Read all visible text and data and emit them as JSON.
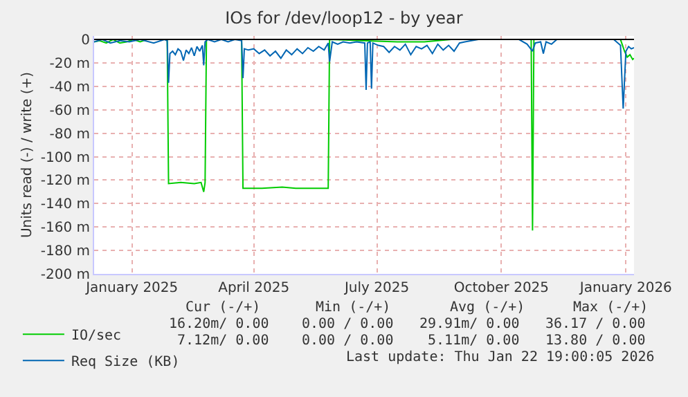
{
  "chart_data": {
    "type": "line",
    "title": "IOs for /dev/loop12 - by year",
    "ylabel": "Units read (-) / write (+)",
    "xlim": [
      "2024-12-19",
      "2026-01-22"
    ],
    "ylim": [
      -200,
      3
    ],
    "xticks": [
      {
        "value": "2025-01-16",
        "label": "January 2025"
      },
      {
        "value": "2025-04-16",
        "label": "April 2025"
      },
      {
        "value": "2025-07-16",
        "label": "July 2025"
      },
      {
        "value": "2025-10-16",
        "label": "October 2025"
      },
      {
        "value": "2026-01-16",
        "label": "January 2026"
      }
    ],
    "yticks": [
      0,
      {
        "value": -20,
        "label": "-20 m"
      },
      {
        "value": -40,
        "label": "-40 m"
      },
      {
        "value": -60,
        "label": "-60 m"
      },
      {
        "value": -80,
        "label": "-80 m"
      },
      {
        "value": -100,
        "label": "-100 m"
      },
      {
        "value": -120,
        "label": "-120 m"
      },
      {
        "value": -140,
        "label": "-140 m"
      },
      {
        "value": -160,
        "label": "-160 m"
      },
      {
        "value": -180,
        "label": "-180 m"
      },
      {
        "value": -200,
        "label": "-200 m"
      }
    ],
    "grid": true,
    "legend": "bottom left",
    "marker": "none",
    "line_style": "solid",
    "ref_lines": [
      {
        "axis": "y",
        "value": 0,
        "color": "#000000"
      }
    ],
    "series": [
      {
        "name": "IO/sec",
        "color": "#00cc00",
        "x": [
          "2024-12-19",
          "2024-12-23",
          "2024-12-28",
          "2025-01-02",
          "2025-01-07",
          "2025-01-12",
          "2025-01-17",
          "2025-01-22",
          "2025-01-27",
          "2025-02-01",
          "2025-02-06",
          "2025-02-11",
          "2025-02-12",
          "2025-02-21",
          "2025-03-03",
          "2025-03-08",
          "2025-03-10",
          "2025-03-11",
          "2025-03-12",
          "2025-03-23",
          "2025-04-07",
          "2025-04-08",
          "2025-04-22",
          "2025-05-07",
          "2025-05-17",
          "2025-05-27",
          "2025-06-10",
          "2025-06-11",
          "2025-07-31",
          "2025-08-20",
          "2025-09-09",
          "2025-11-07",
          "2025-11-08",
          "2025-11-09",
          "2026-01-12",
          "2026-01-15",
          "2026-01-17",
          "2026-01-19",
          "2026-01-21",
          "2026-01-22"
        ],
        "values": [
          -2,
          -1,
          -3,
          0,
          -3,
          -2,
          0,
          -2,
          0,
          0,
          0,
          0,
          -123,
          -122,
          -123,
          -122,
          -130,
          -122,
          0,
          0,
          0,
          -127,
          -127,
          -126,
          -127,
          -127,
          -127,
          0,
          -2,
          -2,
          0,
          0,
          -163,
          0,
          0,
          -10,
          -15,
          -13,
          -17,
          -16
        ]
      },
      {
        "name": "Req Size (KB)",
        "color": "#0066b3",
        "x": [
          "2024-12-19",
          "2024-12-25",
          "2024-12-31",
          "2025-01-07",
          "2025-01-14",
          "2025-01-22",
          "2025-02-01",
          "2025-02-09",
          "2025-02-11",
          "2025-02-12",
          "2025-02-13",
          "2025-02-15",
          "2025-02-17",
          "2025-02-19",
          "2025-02-21",
          "2025-02-23",
          "2025-02-25",
          "2025-02-27",
          "2025-03-01",
          "2025-03-03",
          "2025-03-05",
          "2025-03-07",
          "2025-03-09",
          "2025-03-10",
          "2025-03-11",
          "2025-03-13",
          "2025-03-18",
          "2025-03-23",
          "2025-03-28",
          "2025-04-02",
          "2025-04-07",
          "2025-04-08",
          "2025-04-09",
          "2025-04-12",
          "2025-04-16",
          "2025-04-20",
          "2025-04-24",
          "2025-04-28",
          "2025-05-02",
          "2025-05-06",
          "2025-05-10",
          "2025-05-14",
          "2025-05-18",
          "2025-05-22",
          "2025-05-26",
          "2025-05-30",
          "2025-06-03",
          "2025-06-07",
          "2025-06-10",
          "2025-06-11",
          "2025-06-13",
          "2025-06-17",
          "2025-06-21",
          "2025-06-26",
          "2025-07-01",
          "2025-07-07",
          "2025-07-08",
          "2025-07-09",
          "2025-07-11",
          "2025-07-12",
          "2025-07-13",
          "2025-07-17",
          "2025-07-21",
          "2025-07-25",
          "2025-07-29",
          "2025-08-02",
          "2025-08-06",
          "2025-08-10",
          "2025-08-14",
          "2025-08-18",
          "2025-08-22",
          "2025-08-26",
          "2025-08-30",
          "2025-09-03",
          "2025-09-07",
          "2025-09-11",
          "2025-09-15",
          "2025-09-19",
          "2025-09-29",
          "2025-10-29",
          "2025-11-04",
          "2025-11-08",
          "2025-11-10",
          "2025-11-14",
          "2025-11-16",
          "2025-11-18",
          "2025-11-22",
          "2025-11-26",
          "2026-01-07",
          "2026-01-12",
          "2026-01-14",
          "2026-01-16",
          "2026-01-18",
          "2026-01-20",
          "2026-01-22"
        ],
        "values": [
          -2,
          0,
          -3,
          -1,
          -2,
          0,
          -3,
          0,
          -1,
          -37,
          -12,
          -10,
          -13,
          -8,
          -10,
          -18,
          -9,
          -12,
          -7,
          -14,
          -6,
          -10,
          -5,
          -22,
          -2,
          0,
          -2,
          0,
          -2,
          0,
          -1,
          -33,
          -8,
          -9,
          -8,
          -12,
          -9,
          -14,
          -10,
          -16,
          -9,
          -13,
          -8,
          -12,
          -7,
          -10,
          -6,
          -9,
          -3,
          -19,
          -2,
          -4,
          -2,
          -3,
          -2,
          -3,
          -43,
          -3,
          -2,
          -42,
          -3,
          -5,
          -6,
          -11,
          -6,
          -9,
          -4,
          -13,
          -6,
          -8,
          -5,
          -12,
          -4,
          -9,
          -5,
          -10,
          -3,
          -2,
          0,
          0,
          -4,
          -10,
          -3,
          -2,
          -12,
          -2,
          -4,
          0,
          0,
          -5,
          -59,
          -10,
          -6,
          -8,
          -7
        ]
      }
    ],
    "annotations": [
      "Cur (-/+)",
      "Min (-/+)",
      "Avg (-/+)",
      "Max (-/+)",
      "16.20m/ 0.00",
      "0.00 / 0.00",
      "29.91m/ 0.00",
      "36.17 / 0.00",
      "7.12m/ 0.00",
      "0.00 / 0.00",
      "5.11m/ 0.00",
      "13.80 / 0.00",
      "Last update: Thu Jan 22 19:00:05 2026"
    ]
  }
}
